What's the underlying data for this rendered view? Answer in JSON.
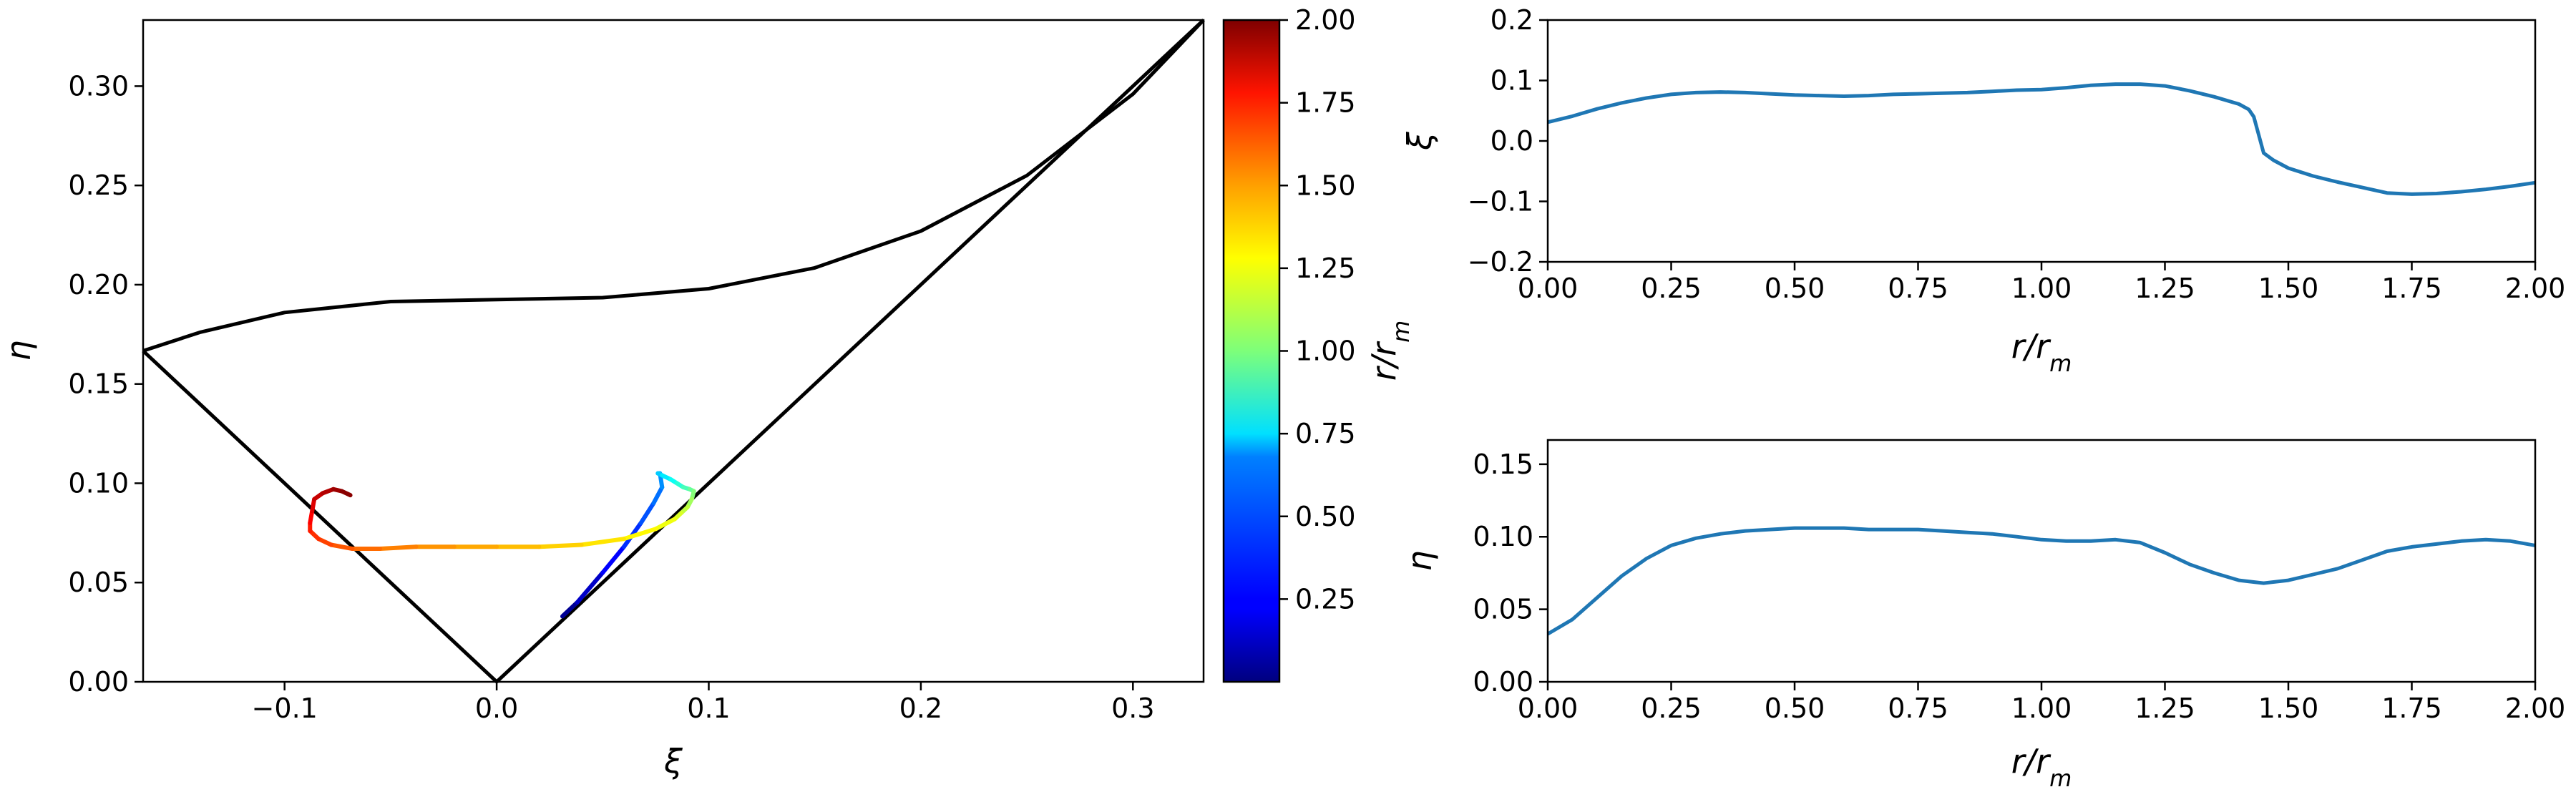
{
  "chart_data": [
    {
      "type": "line",
      "panel": "phase-space",
      "xlabel": "ξ",
      "ylabel": "η",
      "xlim": [
        -0.1667,
        0.3333
      ],
      "ylim": [
        0.0,
        0.3333
      ],
      "xticks": [
        -0.1,
        0.0,
        0.1,
        0.2,
        0.3
      ],
      "xtick_labels": [
        "−0.1",
        "0.0",
        "0.1",
        "0.2",
        "0.3"
      ],
      "yticks": [
        0.0,
        0.05,
        0.1,
        0.15,
        0.2,
        0.25,
        0.3
      ],
      "ytick_labels": [
        "0.00",
        "0.05",
        "0.10",
        "0.15",
        "0.20",
        "0.25",
        "0.30"
      ],
      "grid": false,
      "boundary_lines": [
        {
          "x": [
            -0.1667,
            0.0
          ],
          "y": [
            0.1667,
            0.0
          ]
        },
        {
          "x": [
            0.0,
            0.3333
          ],
          "y": [
            0.0,
            0.3333
          ]
        },
        {
          "x": [
            -0.1667,
            -0.14,
            -0.1,
            -0.05,
            0.0,
            0.05,
            0.1,
            0.15,
            0.2,
            0.25,
            0.3,
            0.3333
          ],
          "y": [
            0.1667,
            0.176,
            0.186,
            0.1915,
            0.1925,
            0.1935,
            0.198,
            0.2085,
            0.227,
            0.255,
            0.296,
            0.3333
          ]
        }
      ],
      "colored_trajectory": {
        "r": [
          0.0,
          0.08,
          0.2,
          0.3,
          0.38,
          0.44,
          0.5,
          0.56,
          0.62,
          0.68,
          0.74,
          0.8,
          0.86,
          0.92,
          0.98,
          1.04,
          1.1,
          1.16,
          1.2,
          1.24,
          1.28,
          1.32,
          1.36,
          1.4,
          1.44,
          1.48,
          1.52,
          1.56,
          1.6,
          1.64,
          1.68,
          1.72,
          1.78,
          1.84,
          1.88,
          1.92,
          1.96,
          2.0
        ],
        "x": [
          0.031,
          0.038,
          0.05,
          0.06,
          0.068,
          0.074,
          0.078,
          0.077,
          0.076,
          0.078,
          0.082,
          0.085,
          0.088,
          0.091,
          0.093,
          0.092,
          0.09,
          0.087,
          0.084,
          0.075,
          0.06,
          0.04,
          0.02,
          0.0,
          -0.02,
          -0.038,
          -0.055,
          -0.068,
          -0.078,
          -0.084,
          -0.088,
          -0.088,
          -0.087,
          -0.086,
          -0.082,
          -0.077,
          -0.073,
          -0.069
        ],
        "y": [
          0.033,
          0.04,
          0.055,
          0.068,
          0.08,
          0.09,
          0.098,
          0.105,
          0.105,
          0.104,
          0.102,
          0.1,
          0.098,
          0.097,
          0.096,
          0.092,
          0.088,
          0.085,
          0.082,
          0.077,
          0.072,
          0.069,
          0.068,
          0.068,
          0.068,
          0.068,
          0.067,
          0.067,
          0.069,
          0.072,
          0.076,
          0.08,
          0.086,
          0.092,
          0.095,
          0.097,
          0.096,
          0.094
        ]
      },
      "colorbar": {
        "label": "r/r_m",
        "range": [
          0.0,
          2.0
        ],
        "ticks": [
          0.25,
          0.5,
          0.75,
          1.0,
          1.25,
          1.5,
          1.75,
          2.0
        ],
        "tick_labels": [
          "0.25",
          "0.50",
          "0.75",
          "1.00",
          "1.25",
          "1.50",
          "1.75",
          "2.00"
        ],
        "colormap": "jet"
      }
    },
    {
      "type": "line",
      "panel": "xi-vs-r",
      "xlabel": "r/r_m",
      "ylabel": "ξ",
      "xlim": [
        0.0,
        2.0
      ],
      "ylim": [
        -0.2,
        0.2
      ],
      "xticks": [
        0.0,
        0.25,
        0.5,
        0.75,
        1.0,
        1.25,
        1.5,
        1.75,
        2.0
      ],
      "xtick_labels": [
        "0.00",
        "0.25",
        "0.50",
        "0.75",
        "1.00",
        "1.25",
        "1.50",
        "1.75",
        "2.00"
      ],
      "yticks": [
        -0.2,
        -0.1,
        0.0,
        0.1,
        0.2
      ],
      "ytick_labels": [
        "−0.2",
        "−0.1",
        "0.0",
        "0.1",
        "0.2"
      ],
      "grid": false,
      "series": [
        {
          "color": "#1f77b4",
          "x": [
            0.0,
            0.05,
            0.1,
            0.15,
            0.2,
            0.25,
            0.3,
            0.35,
            0.4,
            0.45,
            0.5,
            0.55,
            0.6,
            0.65,
            0.7,
            0.75,
            0.8,
            0.85,
            0.9,
            0.95,
            1.0,
            1.05,
            1.1,
            1.15,
            1.2,
            1.25,
            1.3,
            1.35,
            1.4,
            1.42,
            1.43,
            1.44,
            1.45,
            1.47,
            1.5,
            1.55,
            1.6,
            1.65,
            1.7,
            1.75,
            1.8,
            1.85,
            1.9,
            1.95,
            2.0
          ],
          "y": [
            0.031,
            0.041,
            0.053,
            0.063,
            0.071,
            0.077,
            0.08,
            0.081,
            0.08,
            0.078,
            0.076,
            0.075,
            0.074,
            0.075,
            0.077,
            0.078,
            0.079,
            0.08,
            0.082,
            0.084,
            0.085,
            0.088,
            0.092,
            0.094,
            0.094,
            0.091,
            0.083,
            0.073,
            0.061,
            0.052,
            0.04,
            0.01,
            -0.02,
            -0.032,
            -0.045,
            -0.058,
            -0.068,
            -0.077,
            -0.086,
            -0.088,
            -0.087,
            -0.084,
            -0.08,
            -0.075,
            -0.069
          ]
        }
      ]
    },
    {
      "type": "line",
      "panel": "eta-vs-r",
      "xlabel": "r/r_m",
      "ylabel": "η",
      "xlim": [
        0.0,
        2.0
      ],
      "ylim": [
        0.0,
        0.1667
      ],
      "xticks": [
        0.0,
        0.25,
        0.5,
        0.75,
        1.0,
        1.25,
        1.5,
        1.75,
        2.0
      ],
      "xtick_labels": [
        "0.00",
        "0.25",
        "0.50",
        "0.75",
        "1.00",
        "1.25",
        "1.50",
        "1.75",
        "2.00"
      ],
      "yticks": [
        0.0,
        0.05,
        0.1,
        0.15
      ],
      "ytick_labels": [
        "0.00",
        "0.05",
        "0.10",
        "0.15"
      ],
      "grid": false,
      "series": [
        {
          "color": "#1f77b4",
          "x": [
            0.0,
            0.05,
            0.1,
            0.15,
            0.2,
            0.25,
            0.3,
            0.35,
            0.4,
            0.45,
            0.5,
            0.55,
            0.6,
            0.65,
            0.7,
            0.75,
            0.8,
            0.85,
            0.9,
            0.95,
            1.0,
            1.05,
            1.1,
            1.15,
            1.2,
            1.25,
            1.3,
            1.35,
            1.4,
            1.45,
            1.5,
            1.55,
            1.6,
            1.65,
            1.7,
            1.75,
            1.8,
            1.85,
            1.9,
            1.95,
            2.0
          ],
          "y": [
            0.033,
            0.043,
            0.058,
            0.073,
            0.085,
            0.094,
            0.099,
            0.102,
            0.104,
            0.105,
            0.106,
            0.106,
            0.106,
            0.105,
            0.105,
            0.105,
            0.104,
            0.103,
            0.102,
            0.1,
            0.098,
            0.097,
            0.097,
            0.098,
            0.096,
            0.089,
            0.081,
            0.075,
            0.07,
            0.068,
            0.07,
            0.074,
            0.078,
            0.084,
            0.09,
            0.093,
            0.095,
            0.097,
            0.098,
            0.097,
            0.094
          ]
        }
      ]
    }
  ]
}
